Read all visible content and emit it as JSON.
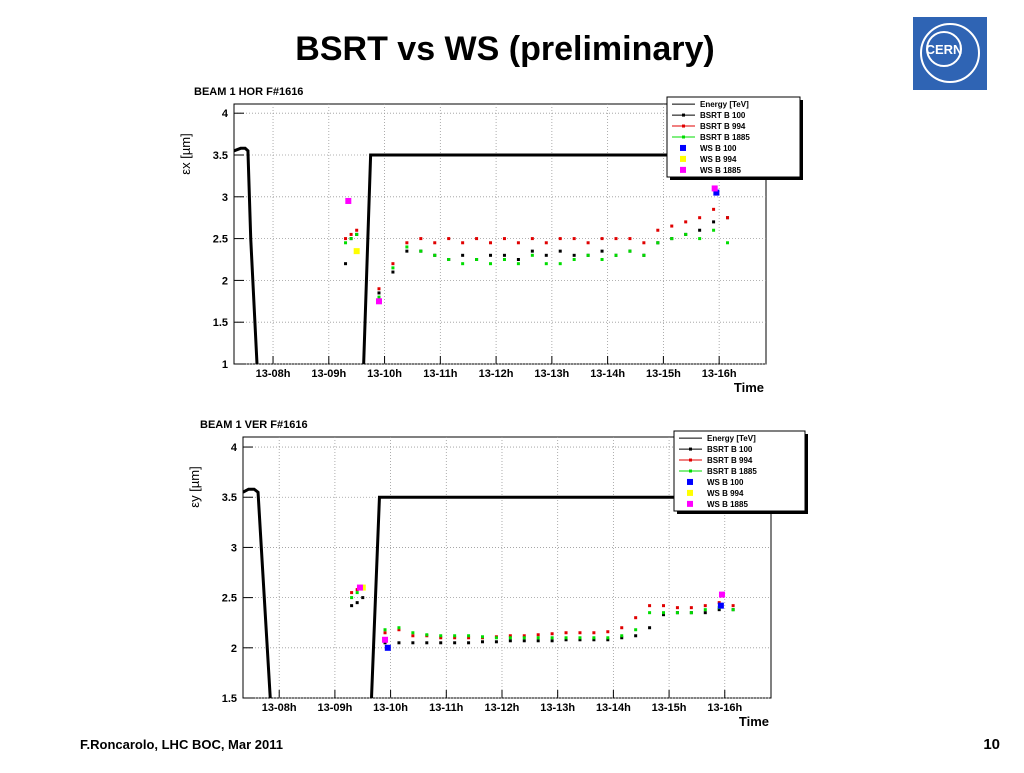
{
  "slide": {
    "title": "BSRT vs WS (preliminary)",
    "footer": "F.Roncarolo, LHC BOC, Mar 2011",
    "page": "10",
    "logo": "CERN"
  },
  "chart_data": [
    {
      "type": "scatter",
      "title": "BEAM 1 HOR F#1616",
      "y_label": "εx [µm]",
      "x_label": "Time",
      "xlim": [
        7.3,
        16.84
      ],
      "ylim": [
        1,
        4.11
      ],
      "grid": true,
      "legend": "top-right",
      "xticks": [
        {
          "value": 8,
          "label": "13-08h"
        },
        {
          "value": 9,
          "label": "13-09h"
        },
        {
          "value": 10,
          "label": "13-10h"
        },
        {
          "value": 11,
          "label": "13-11h"
        },
        {
          "value": 12,
          "label": "13-12h"
        },
        {
          "value": 13,
          "label": "13-13h"
        },
        {
          "value": 14,
          "label": "13-14h"
        },
        {
          "value": 15,
          "label": "13-15h"
        },
        {
          "value": 16,
          "label": "13-16h"
        }
      ],
      "yticks": [
        1,
        1.5,
        2,
        2.5,
        3,
        3.5,
        4
      ],
      "x": [
        9.3,
        9.4,
        9.5,
        9.9,
        10.15,
        10.4,
        10.65,
        10.9,
        11.15,
        11.4,
        11.65,
        11.9,
        12.15,
        12.4,
        12.65,
        12.9,
        13.15,
        13.4,
        13.65,
        13.9,
        14.15,
        14.4,
        14.65,
        14.9,
        15.15,
        15.4,
        15.65,
        15.9,
        16.15
      ],
      "series": [
        {
          "name": "Energy [TeV]",
          "color": "#000000",
          "style": "line",
          "x": [
            7.3,
            7.42,
            7.5,
            7.55,
            7.6,
            7.72,
            9.62,
            9.75,
            16.84
          ],
          "values": [
            3.55,
            3.58,
            3.58,
            3.55,
            2.5,
            0.9,
            0.9,
            3.5,
            3.5
          ]
        },
        {
          "name": "BSRT B 100",
          "color": "#000000",
          "style": "points",
          "values": [
            2.2,
            2.5,
            2.55,
            1.85,
            2.1,
            2.35,
            2.35,
            2.3,
            2.25,
            2.3,
            2.25,
            2.3,
            2.3,
            2.25,
            2.35,
            2.3,
            2.35,
            2.3,
            2.3,
            2.35,
            2.3,
            2.35,
            2.3,
            2.45,
            2.5,
            2.55,
            2.6,
            2.7,
            2.75
          ]
        },
        {
          "name": "BSRT B 994",
          "color": "#e00000",
          "style": "points",
          "values": [
            2.5,
            2.55,
            2.6,
            1.9,
            2.2,
            2.45,
            2.5,
            2.45,
            2.5,
            2.45,
            2.5,
            2.45,
            2.5,
            2.45,
            2.5,
            2.45,
            2.5,
            2.5,
            2.45,
            2.5,
            2.5,
            2.5,
            2.45,
            2.6,
            2.65,
            2.7,
            2.75,
            2.85,
            2.75
          ]
        },
        {
          "name": "BSRT B 1885",
          "color": "#00dd00",
          "style": "points",
          "values": [
            2.45,
            2.5,
            2.55,
            1.8,
            2.15,
            2.4,
            2.35,
            2.3,
            2.25,
            2.2,
            2.25,
            2.2,
            2.25,
            2.2,
            2.3,
            2.2,
            2.2,
            2.25,
            2.3,
            2.25,
            2.3,
            2.35,
            2.3,
            2.45,
            2.5,
            2.55,
            2.5,
            2.6,
            2.45
          ]
        },
        {
          "name": "WS  B 100",
          "color": "#0000ff",
          "style": "squares",
          "x": [
            15.95
          ],
          "values": [
            3.05
          ]
        },
        {
          "name": "WS  B 994",
          "color": "#ffff00",
          "style": "squares",
          "x": [
            9.5
          ],
          "values": [
            2.35
          ]
        },
        {
          "name": "WS  B 1885",
          "color": "#ff00ff",
          "style": "squares",
          "x": [
            9.35,
            9.9,
            15.92
          ],
          "values": [
            2.95,
            1.75,
            3.1
          ]
        }
      ]
    },
    {
      "type": "scatter",
      "title": "BEAM 1 VER F#1616",
      "y_label": "εy [µm]",
      "x_label": "Time",
      "xlim": [
        7.35,
        16.83
      ],
      "ylim": [
        1.5,
        4.1
      ],
      "grid": true,
      "legend": "top-right",
      "xticks": [
        {
          "value": 8,
          "label": "13-08h"
        },
        {
          "value": 9,
          "label": "13-09h"
        },
        {
          "value": 10,
          "label": "13-10h"
        },
        {
          "value": 11,
          "label": "13-11h"
        },
        {
          "value": 12,
          "label": "13-12h"
        },
        {
          "value": 13,
          "label": "13-13h"
        },
        {
          "value": 14,
          "label": "13-14h"
        },
        {
          "value": 15,
          "label": "13-15h"
        },
        {
          "value": 16,
          "label": "13-16h"
        }
      ],
      "yticks": [
        1.5,
        2,
        2.5,
        3,
        3.5,
        4
      ],
      "x": [
        9.3,
        9.4,
        9.5,
        9.9,
        10.15,
        10.4,
        10.65,
        10.9,
        11.15,
        11.4,
        11.65,
        11.9,
        12.15,
        12.4,
        12.65,
        12.9,
        13.15,
        13.4,
        13.65,
        13.9,
        14.15,
        14.4,
        14.65,
        14.9,
        15.15,
        15.4,
        15.65,
        15.9,
        16.15
      ],
      "series": [
        {
          "name": "Energy [TeV]",
          "color": "#000000",
          "style": "line",
          "x": [
            7.35,
            7.45,
            7.55,
            7.62,
            7.7,
            7.85,
            9.65,
            9.8,
            16.83
          ],
          "values": [
            3.55,
            3.58,
            3.58,
            3.55,
            2.8,
            1.4,
            1.4,
            3.5,
            3.5
          ]
        },
        {
          "name": "BSRT B 100",
          "color": "#000000",
          "style": "points",
          "values": [
            2.42,
            2.45,
            2.5,
            2.05,
            2.05,
            2.05,
            2.05,
            2.05,
            2.05,
            2.05,
            2.06,
            2.06,
            2.07,
            2.07,
            2.07,
            2.07,
            2.08,
            2.08,
            2.08,
            2.08,
            2.1,
            2.12,
            2.2,
            2.33,
            2.35,
            2.35,
            2.35,
            2.38,
            2.38
          ]
        },
        {
          "name": "BSRT B 994",
          "color": "#e00000",
          "style": "points",
          "values": [
            2.55,
            2.58,
            2.6,
            2.15,
            2.18,
            2.12,
            2.12,
            2.1,
            2.1,
            2.1,
            2.1,
            2.11,
            2.12,
            2.12,
            2.13,
            2.14,
            2.15,
            2.15,
            2.15,
            2.16,
            2.2,
            2.3,
            2.42,
            2.42,
            2.4,
            2.4,
            2.42,
            2.45,
            2.42
          ]
        },
        {
          "name": "BSRT B 1885",
          "color": "#00dd00",
          "style": "points",
          "values": [
            2.5,
            2.55,
            2.6,
            2.18,
            2.2,
            2.15,
            2.13,
            2.12,
            2.12,
            2.12,
            2.11,
            2.1,
            2.1,
            2.1,
            2.1,
            2.1,
            2.1,
            2.1,
            2.1,
            2.1,
            2.12,
            2.18,
            2.35,
            2.35,
            2.35,
            2.35,
            2.38,
            2.4,
            2.38
          ]
        },
        {
          "name": "WS  B 100",
          "color": "#0000ff",
          "style": "squares",
          "x": [
            9.95,
            15.93
          ],
          "values": [
            2.0,
            2.42
          ]
        },
        {
          "name": "WS  B 994",
          "color": "#ffff00",
          "style": "squares",
          "x": [
            9.5
          ],
          "values": [
            2.6
          ]
        },
        {
          "name": "WS  B 1885",
          "color": "#ff00ff",
          "style": "squares",
          "x": [
            9.45,
            9.9,
            15.95
          ],
          "values": [
            2.6,
            2.08,
            2.53
          ]
        }
      ]
    }
  ]
}
